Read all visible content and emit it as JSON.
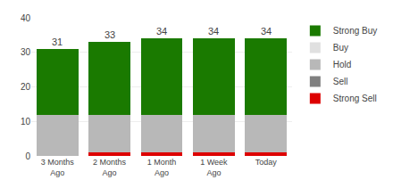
{
  "chart_data": {
    "type": "bar",
    "stacked": true,
    "categories": [
      "3 Months\nAgo",
      "2 Months\nAgo",
      "1 Month\nAgo",
      "1 Week\nAgo",
      "Today"
    ],
    "series": [
      {
        "name": "Strong Sell",
        "color": "#dd0000",
        "values": [
          0,
          1,
          1,
          1,
          1
        ]
      },
      {
        "name": "Sell",
        "color": "#808080",
        "values": [
          0,
          0,
          0,
          0,
          0
        ]
      },
      {
        "name": "Hold",
        "color": "#b8b8b8",
        "values": [
          12,
          11,
          11,
          11,
          11
        ]
      },
      {
        "name": "Buy",
        "color": "#e0e0e0",
        "values": [
          0,
          0,
          0,
          0,
          0
        ]
      },
      {
        "name": "Strong Buy",
        "color": "#1a7a00",
        "values": [
          19,
          21,
          22,
          22,
          22
        ]
      }
    ],
    "totals": [
      31,
      33,
      34,
      34,
      34
    ],
    "ylim": [
      0,
      40
    ],
    "yticks": [
      0,
      10,
      20,
      30,
      40
    ],
    "grid": true,
    "legend": "right"
  }
}
